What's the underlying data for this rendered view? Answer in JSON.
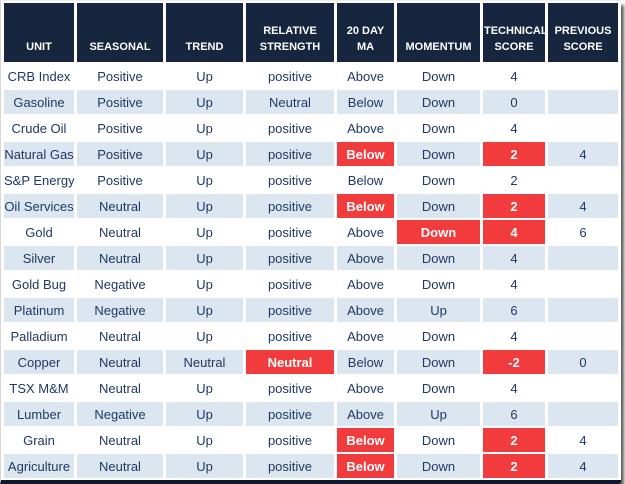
{
  "colors": {
    "header_bg": "#15263e",
    "stripe_bg": "#dce6f1",
    "alert_bg": "#f13b3c",
    "text_color": "#1f3864",
    "header_text": "#ffffff",
    "frame_border": "#10192b"
  },
  "chart_data": {
    "type": "table",
    "title": "Commodity technical scoreboard",
    "columns": [
      "UNIT",
      "SEASONAL",
      "TREND",
      "RELATIVE STRENGTH",
      "20 DAY MA",
      "MOMENTUM",
      "TECHNICAL SCORE",
      "PREVIOUS SCORE"
    ],
    "fields": [
      "unit",
      "seasonal",
      "trend",
      "relative-strength",
      "20day-ma",
      "momentum",
      "technical-score",
      "previous-score"
    ],
    "rows": [
      {
        "cells": [
          "CRB Index",
          "Positive",
          "Up",
          "positive",
          "Above",
          "Down",
          "4",
          ""
        ],
        "alerts": []
      },
      {
        "cells": [
          "Gasoline",
          "Positive",
          "Up",
          "Neutral",
          "Below",
          "Down",
          "0",
          ""
        ],
        "alerts": []
      },
      {
        "cells": [
          "Crude Oil",
          "Positive",
          "Up",
          "positive",
          "Above",
          "Down",
          "4",
          ""
        ],
        "alerts": []
      },
      {
        "cells": [
          "Natural Gas",
          "Positive",
          "Up",
          "positive",
          "Below",
          "Down",
          "2",
          "4"
        ],
        "alerts": [
          4,
          6
        ]
      },
      {
        "cells": [
          "S&P Energy",
          "Positive",
          "Up",
          "positive",
          "Below",
          "Down",
          "2",
          ""
        ],
        "alerts": []
      },
      {
        "cells": [
          "Oil Services",
          "Neutral",
          "Up",
          "positive",
          "Below",
          "Down",
          "2",
          "4"
        ],
        "alerts": [
          4,
          6
        ]
      },
      {
        "cells": [
          "Gold",
          "Neutral",
          "Up",
          "positive",
          "Above",
          "Down",
          "4",
          "6"
        ],
        "alerts": [
          5,
          6
        ]
      },
      {
        "cells": [
          "Silver",
          "Neutral",
          "Up",
          "positive",
          "Above",
          "Down",
          "4",
          ""
        ],
        "alerts": []
      },
      {
        "cells": [
          "Gold Bug",
          "Negative",
          "Up",
          "positive",
          "Above",
          "Down",
          "4",
          ""
        ],
        "alerts": []
      },
      {
        "cells": [
          "Platinum",
          "Negative",
          "Up",
          "positive",
          "Above",
          "Up",
          "6",
          ""
        ],
        "alerts": []
      },
      {
        "cells": [
          "Palladium",
          "Neutral",
          "Up",
          "positive",
          "Above",
          "Down",
          "4",
          ""
        ],
        "alerts": []
      },
      {
        "cells": [
          "Copper",
          "Neutral",
          "Neutral",
          "Neutral",
          "Below",
          "Down",
          "-2",
          "0"
        ],
        "alerts": [
          3,
          6
        ]
      },
      {
        "cells": [
          "TSX M&M",
          "Neutral",
          "Up",
          "positive",
          "Above",
          "Down",
          "4",
          ""
        ],
        "alerts": []
      },
      {
        "cells": [
          "Lumber",
          "Negative",
          "Up",
          "positive",
          "Above",
          "Up",
          "6",
          ""
        ],
        "alerts": []
      },
      {
        "cells": [
          "Grain",
          "Neutral",
          "Up",
          "positive",
          "Below",
          "Down",
          "2",
          "4"
        ],
        "alerts": [
          4,
          6
        ]
      },
      {
        "cells": [
          "Agriculture",
          "Neutral",
          "Up",
          "positive",
          "Below",
          "Down",
          "2",
          "4"
        ],
        "alerts": [
          4,
          6
        ]
      }
    ]
  }
}
